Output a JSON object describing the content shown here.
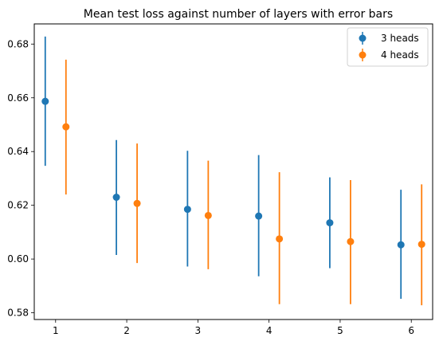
{
  "chart_data": {
    "type": "scatter",
    "title": "Mean test loss against number of layers with error bars",
    "xlabel": "",
    "ylabel": "",
    "x_ticks": [
      "1",
      "2",
      "3",
      "4",
      "5",
      "6"
    ],
    "y_ticks": [
      "0.58",
      "0.60",
      "0.62",
      "0.64",
      "0.66",
      "0.68"
    ],
    "xlim": [
      0.7,
      6.3
    ],
    "ylim": [
      0.5775,
      0.6875
    ],
    "grid": false,
    "legend_position": "top-right",
    "series": [
      {
        "name": "3 heads",
        "color": "#1f77b4",
        "x": [
          1,
          2,
          3,
          4,
          5,
          6
        ],
        "y": [
          0.6587,
          0.623,
          0.6185,
          0.616,
          0.6135,
          0.6053
        ],
        "yerr_low": [
          0.6347,
          0.6015,
          0.5972,
          0.5936,
          0.5966,
          0.5852
        ],
        "yerr_high": [
          0.6828,
          0.6443,
          0.6403,
          0.6387,
          0.6304,
          0.6258
        ]
      },
      {
        "name": "4 heads",
        "color": "#ff7f0e",
        "x": [
          1,
          2,
          3,
          4,
          5,
          6
        ],
        "y": [
          0.6492,
          0.6207,
          0.6162,
          0.6075,
          0.6065,
          0.6055
        ],
        "yerr_low": [
          0.624,
          0.5985,
          0.5962,
          0.5832,
          0.5832,
          0.5828
        ],
        "yerr_high": [
          0.6742,
          0.643,
          0.6366,
          0.6323,
          0.6294,
          0.6278
        ]
      }
    ]
  }
}
